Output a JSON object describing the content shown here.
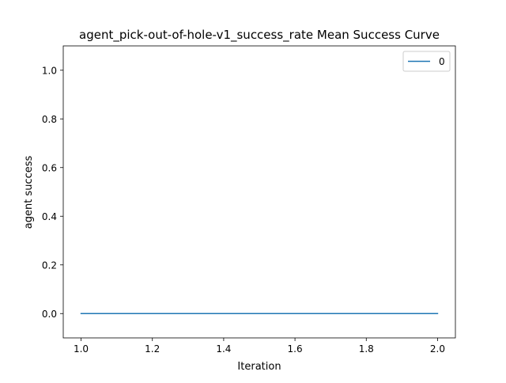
{
  "chart_data": {
    "type": "line",
    "title": "agent_pick-out-of-hole-v1_success_rate Mean Success Curve",
    "xlabel": "Iteration",
    "ylabel": "agent success",
    "xlim": [
      0.95,
      2.05
    ],
    "ylim": [
      -0.1,
      1.1
    ],
    "xticks": [
      1.0,
      1.2,
      1.4,
      1.6,
      1.8,
      2.0
    ],
    "xtick_labels": [
      "1.0",
      "1.2",
      "1.4",
      "1.6",
      "1.8",
      "2.0"
    ],
    "yticks": [
      0.0,
      0.2,
      0.4,
      0.6,
      0.8,
      1.0
    ],
    "ytick_labels": [
      "0.0",
      "0.2",
      "0.4",
      "0.6",
      "0.8",
      "1.0"
    ],
    "grid": false,
    "legend_position": "top-right",
    "series": [
      {
        "name": "0",
        "color": "#1f77b4",
        "x": [
          1,
          2
        ],
        "y": [
          0.0,
          0.0
        ]
      }
    ]
  }
}
